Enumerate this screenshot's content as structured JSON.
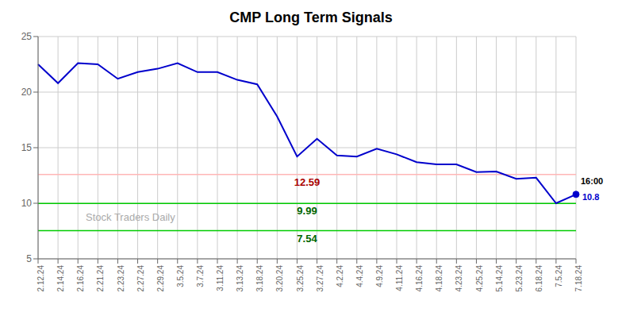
{
  "chart_data": {
    "type": "line",
    "title": "CMP Long Term Signals",
    "categories": [
      "2.12.24",
      "2.14.24",
      "2.16.24",
      "2.21.24",
      "2.23.24",
      "2.27.24",
      "2.29.24",
      "3.5.24",
      "3.7.24",
      "3.11.24",
      "3.13.24",
      "3.18.24",
      "3.20.24",
      "3.25.24",
      "3.27.24",
      "4.2.24",
      "4.4.24",
      "4.9.24",
      "4.11.24",
      "4.16.24",
      "4.18.24",
      "4.23.24",
      "4.25.24",
      "5.14.24",
      "5.23.24",
      "6.18.24",
      "7.5.24",
      "7.18.24"
    ],
    "values": [
      22.5,
      20.8,
      22.6,
      22.5,
      21.2,
      21.8,
      22.1,
      22.6,
      21.8,
      21.8,
      21.1,
      20.7,
      17.8,
      14.2,
      15.8,
      14.3,
      14.2,
      14.9,
      14.4,
      13.7,
      13.5,
      13.5,
      12.8,
      12.85,
      12.2,
      12.3,
      10.0,
      10.8
    ],
    "color": "#0000cc",
    "marker": "last",
    "hlines": [
      {
        "y": 12.59,
        "color": "#ffb6b6",
        "label": {
          "text": "12.59",
          "color": "#aa0000"
        }
      },
      {
        "y": 9.99,
        "color": "#00cc00",
        "label": {
          "text": "9.99",
          "color": "#006600"
        }
      },
      {
        "y": 7.54,
        "color": "#00cc00",
        "label": {
          "text": "7.54",
          "color": "#006600"
        }
      }
    ],
    "annotations": [
      {
        "text": "16:00",
        "color": "#000000"
      },
      {
        "text": "10.8",
        "color": "#0000cc"
      }
    ],
    "watermark": {
      "text": "Stock Traders Daily",
      "color": "#aaaaaa"
    },
    "ylim": [
      5,
      25
    ],
    "yticks": [
      5,
      10,
      15,
      20,
      25
    ],
    "grid": true
  }
}
